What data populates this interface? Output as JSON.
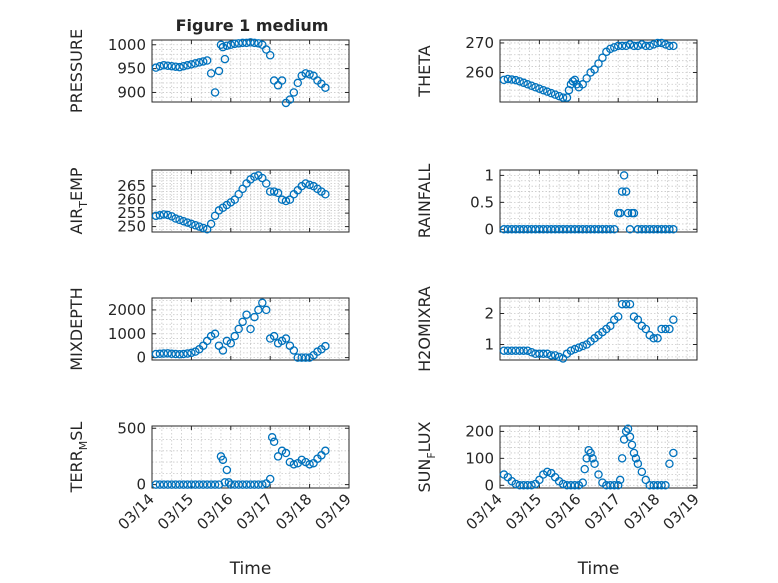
{
  "figure": {
    "title": "Figure 1 medium",
    "x_tick_labels": [
      "03/14",
      "03/15",
      "03/16",
      "03/17",
      "03/18",
      "03/19"
    ],
    "x_axis_label": "Time"
  },
  "chart_data": [
    {
      "type": "scatter",
      "ylabel": "PRESSURE",
      "ylim": [
        880,
        1010
      ],
      "yticks": [
        900,
        950,
        1000
      ],
      "ytick_labels": [
        "900",
        "950",
        "1000"
      ],
      "xlim": [
        "03/14",
        "03/19"
      ],
      "grid": true,
      "color": "#0072bd",
      "x": [
        0.1,
        0.2,
        0.3,
        0.4,
        0.5,
        0.6,
        0.7,
        0.8,
        0.9,
        1.0,
        1.1,
        1.2,
        1.3,
        1.4,
        1.5,
        1.6,
        1.7,
        1.75,
        1.8,
        1.85,
        1.9,
        2.0,
        2.1,
        2.2,
        2.3,
        2.4,
        2.5,
        2.6,
        2.7,
        2.8,
        2.9,
        3.0,
        3.1,
        3.2,
        3.3,
        3.4,
        3.5,
        3.6,
        3.7,
        3.8,
        3.9,
        4.0,
        4.1,
        4.2,
        4.3,
        4.4
      ],
      "y": [
        952,
        955,
        957,
        956,
        955,
        954,
        953,
        955,
        957,
        959,
        961,
        963,
        965,
        967,
        940,
        900,
        945,
        1000,
        995,
        970,
        998,
        1000,
        1002,
        1003,
        1004,
        1004,
        1005,
        1004,
        1003,
        1000,
        990,
        978,
        925,
        915,
        925,
        878,
        885,
        900,
        920,
        935,
        940,
        938,
        935,
        925,
        918,
        910
      ]
    },
    {
      "type": "scatter",
      "ylabel": "THETA",
      "ylim": [
        250,
        271
      ],
      "yticks": [
        260,
        270
      ],
      "ytick_labels": [
        "260",
        "270"
      ],
      "xlim": [
        "03/14",
        "03/19"
      ],
      "grid": true,
      "color": "#0072bd",
      "x": [
        0.1,
        0.2,
        0.3,
        0.4,
        0.5,
        0.6,
        0.7,
        0.8,
        0.9,
        1.0,
        1.1,
        1.2,
        1.3,
        1.4,
        1.5,
        1.6,
        1.7,
        1.75,
        1.8,
        1.85,
        1.9,
        1.95,
        2.0,
        2.1,
        2.2,
        2.3,
        2.4,
        2.5,
        2.6,
        2.7,
        2.8,
        2.9,
        3.0,
        3.1,
        3.2,
        3.3,
        3.4,
        3.5,
        3.6,
        3.7,
        3.8,
        3.9,
        4.0,
        4.1,
        4.2,
        4.3,
        4.4
      ],
      "y": [
        257.5,
        257.8,
        257.6,
        257.4,
        257,
        256.5,
        256,
        255.5,
        255,
        254.5,
        254,
        253.5,
        253,
        252.5,
        252,
        251.5,
        251.5,
        254,
        256,
        257,
        257.5,
        256,
        255,
        256,
        258,
        260,
        261,
        263,
        265,
        267,
        268,
        268.5,
        269,
        269,
        269,
        269.5,
        269,
        269,
        269.5,
        269,
        269,
        269.5,
        270,
        270,
        269.5,
        269,
        269
      ]
    },
    {
      "type": "scatter",
      "ylabel": "AIR_TEMP",
      "ylim": [
        248,
        271
      ],
      "yticks": [
        250,
        255,
        260,
        265
      ],
      "ytick_labels": [
        "250",
        "255",
        "260",
        "265"
      ],
      "xlim": [
        "03/14",
        "03/19"
      ],
      "grid": true,
      "color": "#0072bd",
      "x": [
        0.1,
        0.2,
        0.3,
        0.4,
        0.5,
        0.6,
        0.7,
        0.8,
        0.9,
        1.0,
        1.1,
        1.2,
        1.3,
        1.4,
        1.5,
        1.6,
        1.7,
        1.8,
        1.9,
        2.0,
        2.1,
        2.2,
        2.3,
        2.4,
        2.5,
        2.6,
        2.7,
        2.8,
        2.9,
        3.0,
        3.1,
        3.2,
        3.3,
        3.4,
        3.5,
        3.6,
        3.7,
        3.8,
        3.9,
        4.0,
        4.1,
        4.2,
        4.3,
        4.4
      ],
      "y": [
        254,
        254.2,
        254.5,
        254.3,
        253.8,
        253,
        252.5,
        252,
        251.5,
        251,
        250.5,
        250,
        249.5,
        249,
        251,
        254,
        256,
        257,
        258,
        259,
        260,
        262,
        264,
        266,
        267.5,
        268.5,
        269,
        268,
        266,
        263,
        263,
        262.5,
        260,
        259.5,
        260,
        262,
        263.5,
        265,
        266,
        265.5,
        265,
        264,
        263,
        262
      ]
    },
    {
      "type": "scatter",
      "ylabel": "RAINFALL",
      "ylim": [
        -0.05,
        1.1
      ],
      "yticks": [
        0,
        0.5,
        1
      ],
      "ytick_labels": [
        "0",
        "0.5",
        "1"
      ],
      "xlim": [
        "03/14",
        "03/19"
      ],
      "grid": true,
      "color": "#0072bd",
      "x": [
        0.1,
        0.2,
        0.3,
        0.4,
        0.5,
        0.6,
        0.7,
        0.8,
        0.9,
        1.0,
        1.1,
        1.2,
        1.3,
        1.4,
        1.5,
        1.6,
        1.7,
        1.8,
        1.9,
        2.0,
        2.1,
        2.2,
        2.3,
        2.4,
        2.5,
        2.6,
        2.7,
        2.8,
        2.9,
        3.0,
        3.05,
        3.1,
        3.15,
        3.2,
        3.25,
        3.3,
        3.35,
        3.4,
        3.5,
        3.6,
        3.7,
        3.8,
        3.9,
        4.0,
        4.1,
        4.2,
        4.3,
        4.4
      ],
      "y": [
        0,
        0,
        0,
        0,
        0,
        0,
        0,
        0,
        0,
        0,
        0,
        0,
        0,
        0,
        0,
        0,
        0,
        0,
        0,
        0,
        0,
        0,
        0,
        0,
        0,
        0,
        0,
        0,
        0,
        0.3,
        0.3,
        0.7,
        1.0,
        0.7,
        0.3,
        0,
        0.3,
        0.3,
        0,
        0,
        0,
        0,
        0,
        0,
        0,
        0,
        0,
        0
      ]
    },
    {
      "type": "scatter",
      "ylabel": "MIXDEPTH",
      "ylim": [
        -100,
        2500
      ],
      "yticks": [
        0,
        1000,
        2000
      ],
      "ytick_labels": [
        "0",
        "1000",
        "2000"
      ],
      "xlim": [
        "03/14",
        "03/19"
      ],
      "grid": true,
      "color": "#0072bd",
      "x": [
        0.1,
        0.2,
        0.3,
        0.4,
        0.5,
        0.6,
        0.7,
        0.8,
        0.9,
        1.0,
        1.1,
        1.2,
        1.3,
        1.4,
        1.5,
        1.6,
        1.7,
        1.8,
        1.9,
        2.0,
        2.1,
        2.2,
        2.3,
        2.4,
        2.5,
        2.6,
        2.7,
        2.8,
        2.9,
        3.0,
        3.1,
        3.2,
        3.3,
        3.4,
        3.5,
        3.6,
        3.7,
        3.8,
        3.9,
        4.0,
        4.1,
        4.2,
        4.3,
        4.4
      ],
      "y": [
        150,
        160,
        170,
        180,
        160,
        150,
        140,
        150,
        170,
        200,
        250,
        350,
        500,
        700,
        900,
        1000,
        500,
        300,
        700,
        600,
        900,
        1200,
        1500,
        1800,
        1200,
        1700,
        2000,
        2300,
        2000,
        800,
        900,
        600,
        700,
        800,
        500,
        300,
        0,
        0,
        0,
        0,
        100,
        250,
        350,
        480
      ]
    },
    {
      "type": "scatter",
      "ylabel": "H2OMIXRA",
      "ylim": [
        0.5,
        2.5
      ],
      "yticks": [
        1,
        2
      ],
      "ytick_labels": [
        "1",
        "2"
      ],
      "xlim": [
        "03/14",
        "03/19"
      ],
      "grid": true,
      "color": "#0072bd",
      "x": [
        0.1,
        0.2,
        0.3,
        0.4,
        0.5,
        0.6,
        0.7,
        0.8,
        0.9,
        1.0,
        1.1,
        1.2,
        1.3,
        1.4,
        1.5,
        1.6,
        1.7,
        1.8,
        1.9,
        2.0,
        2.1,
        2.2,
        2.3,
        2.4,
        2.5,
        2.6,
        2.7,
        2.8,
        2.9,
        3.0,
        3.1,
        3.2,
        3.3,
        3.4,
        3.5,
        3.6,
        3.7,
        3.8,
        3.9,
        4.0,
        4.1,
        4.2,
        4.3,
        4.4
      ],
      "y": [
        0.8,
        0.8,
        0.8,
        0.8,
        0.8,
        0.8,
        0.8,
        0.75,
        0.7,
        0.7,
        0.7,
        0.7,
        0.65,
        0.65,
        0.6,
        0.55,
        0.7,
        0.8,
        0.85,
        0.9,
        0.95,
        1.0,
        1.1,
        1.2,
        1.3,
        1.4,
        1.5,
        1.6,
        1.8,
        1.9,
        2.3,
        2.3,
        2.3,
        1.9,
        1.8,
        1.6,
        1.5,
        1.3,
        1.2,
        1.2,
        1.5,
        1.5,
        1.5,
        1.8
      ]
    },
    {
      "type": "scatter",
      "ylabel": "TERR_MSL",
      "ylim": [
        -30,
        520
      ],
      "yticks": [
        0,
        500
      ],
      "ytick_labels": [
        "0",
        "500"
      ],
      "xlim": [
        "03/14",
        "03/19"
      ],
      "grid": true,
      "color": "#0072bd",
      "x": [
        0.1,
        0.2,
        0.3,
        0.4,
        0.5,
        0.6,
        0.7,
        0.8,
        0.9,
        1.0,
        1.1,
        1.2,
        1.3,
        1.4,
        1.5,
        1.6,
        1.7,
        1.75,
        1.8,
        1.85,
        1.9,
        1.95,
        2.0,
        2.1,
        2.2,
        2.3,
        2.4,
        2.5,
        2.6,
        2.7,
        2.8,
        2.9,
        3.0,
        3.05,
        3.1,
        3.2,
        3.3,
        3.4,
        3.5,
        3.6,
        3.7,
        3.8,
        3.9,
        4.0,
        4.1,
        4.2,
        4.3,
        4.4
      ],
      "y": [
        0,
        0,
        0,
        0,
        0,
        0,
        0,
        0,
        0,
        0,
        0,
        0,
        0,
        0,
        0,
        0,
        0,
        250,
        220,
        20,
        130,
        20,
        0,
        0,
        0,
        0,
        0,
        0,
        0,
        0,
        0,
        10,
        50,
        420,
        380,
        250,
        300,
        280,
        200,
        180,
        190,
        220,
        200,
        180,
        190,
        230,
        260,
        300
      ]
    },
    {
      "type": "scatter",
      "ylabel": "SUN_FLUX",
      "ylim": [
        -10,
        220
      ],
      "yticks": [
        0,
        100,
        200
      ],
      "ytick_labels": [
        "0",
        "100",
        "200"
      ],
      "xlim": [
        "03/14",
        "03/19"
      ],
      "grid": true,
      "color": "#0072bd",
      "x": [
        0.1,
        0.2,
        0.3,
        0.4,
        0.5,
        0.6,
        0.7,
        0.8,
        0.9,
        1.0,
        1.1,
        1.2,
        1.3,
        1.4,
        1.5,
        1.6,
        1.7,
        1.8,
        1.9,
        2.0,
        2.1,
        2.15,
        2.2,
        2.25,
        2.3,
        2.35,
        2.4,
        2.5,
        2.6,
        2.7,
        2.8,
        2.9,
        3.0,
        3.05,
        3.1,
        3.15,
        3.2,
        3.25,
        3.3,
        3.35,
        3.4,
        3.45,
        3.5,
        3.6,
        3.7,
        3.8,
        3.9,
        4.0,
        4.1,
        4.2,
        4.3,
        4.4
      ],
      "y": [
        40,
        30,
        15,
        5,
        0,
        0,
        0,
        0,
        5,
        20,
        40,
        50,
        45,
        30,
        15,
        5,
        0,
        0,
        0,
        0,
        10,
        60,
        100,
        130,
        120,
        100,
        80,
        40,
        10,
        0,
        0,
        0,
        0,
        20,
        100,
        170,
        200,
        210,
        180,
        150,
        120,
        100,
        80,
        50,
        20,
        0,
        0,
        0,
        0,
        0,
        80,
        120
      ]
    }
  ]
}
